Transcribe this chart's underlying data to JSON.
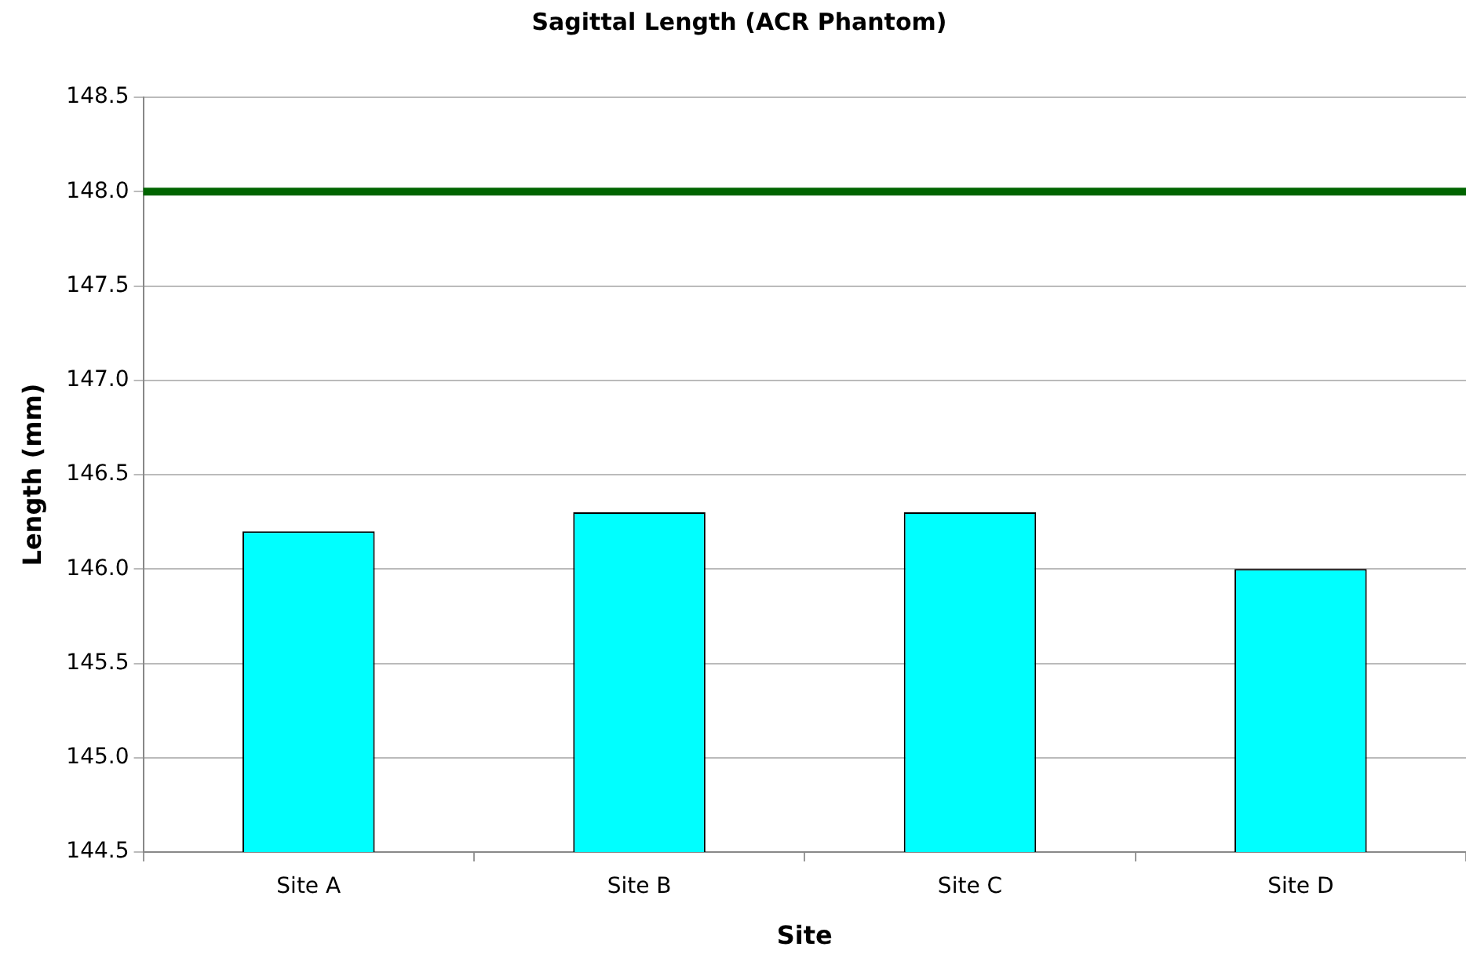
{
  "chart_data": {
    "type": "bar",
    "title": "Sagittal Length (ACR Phantom)",
    "xlabel": "Site",
    "ylabel": "Length (mm)",
    "categories": [
      "Site A",
      "Site B",
      "Site C",
      "Site D"
    ],
    "values": [
      146.2,
      146.3,
      146.3,
      146.0
    ],
    "color": "#00ffff",
    "ylim": [
      144.5,
      148.5
    ],
    "yticks": [
      {
        "value": 144.5,
        "label": "144.5"
      },
      {
        "value": 145,
        "label": "145.0"
      },
      {
        "value": 145.5,
        "label": "145.5"
      },
      {
        "value": 146,
        "label": "146.0"
      },
      {
        "value": 146.5,
        "label": "146.5"
      },
      {
        "value": 147,
        "label": "147.0"
      },
      {
        "value": 147.5,
        "label": "147.5"
      },
      {
        "value": 148,
        "label": "148.0"
      },
      {
        "value": 148.5,
        "label": "148.5"
      }
    ],
    "grid": "y",
    "legend": false,
    "ref_lines": [
      {
        "axis": "y",
        "value": 148,
        "color": "#006400"
      }
    ]
  }
}
